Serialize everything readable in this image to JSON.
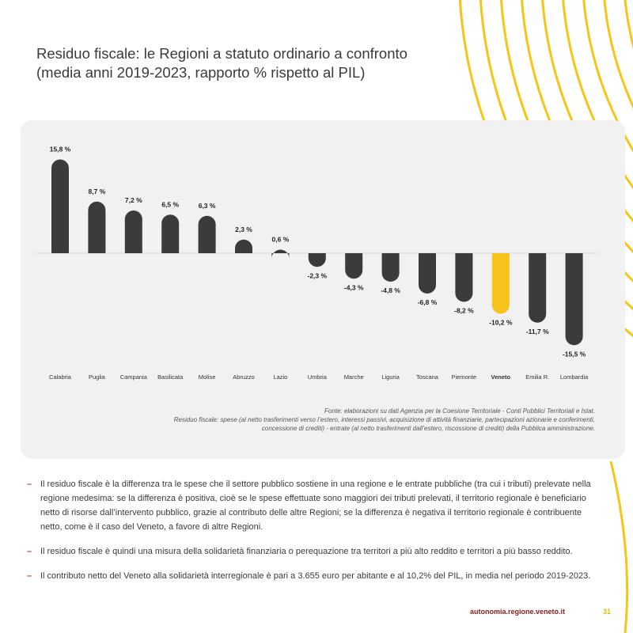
{
  "title_line1": "Residuo fiscale: le Regioni a statuto ordinario a confronto",
  "title_line2": "(media anni 2019-2023, rapporto % rispetto al PIL)",
  "colors": {
    "bar": "#3a3b3d",
    "highlight": "#f7c21b",
    "accent_lines": "#f5c518",
    "bullet_dash": "#e63030",
    "url": "#8a1c1c",
    "page_number": "#f2b705"
  },
  "chart_data": {
    "type": "bar",
    "title": "",
    "xlabel": "",
    "ylabel": "",
    "categories": [
      "Calabria",
      "Puglia",
      "Campania",
      "Basilicata",
      "Molise",
      "Abruzzo",
      "Lazio",
      "Umbria",
      "Marche",
      "Liguria",
      "Toscana",
      "Piemonte",
      "Veneto",
      "Emilia R.",
      "Lombardia"
    ],
    "values": [
      15.8,
      8.7,
      7.2,
      6.5,
      6.3,
      2.3,
      0.6,
      -2.3,
      -4.3,
      -4.8,
      -6.8,
      -8.2,
      -10.2,
      -11.7,
      -15.5
    ],
    "labels": [
      "15,8 %",
      "8,7 %",
      "7,2 %",
      "6,5 %",
      "6,3 %",
      "2,3 %",
      "0,6 %",
      "-2,3 %",
      "-4,3 %",
      "-4,8 %",
      "-6,8 %",
      "-8,2 %",
      "-10,2 %",
      "-11,7 %",
      "-15,5 %"
    ],
    "highlight": "Veneto",
    "ylim": [
      -15.5,
      15.8
    ],
    "grid": false,
    "legend": "none"
  },
  "source_line1": "Fonte: elaborazioni su dati Agenzia per la Coesione Territoriale - Conti Pubblici Territoriali e Istat.",
  "source_line2": "Residuo fiscale: spese (al netto trasferimenti verso l’estero, interessi passivi, acquisizione di attività finanziarie, partecipazioni azionarie e conferimenti,",
  "source_line3": "concessione di crediti) - entrate (al netto trasferimenti dall’estero, riscossione di crediti) della Pubblica amministrazione.",
  "bullet_marker": "–",
  "bullets": [
    "Il residuo fiscale è la differenza tra le spese che il settore pubblico sostiene in una regione e le entrate pubbliche (tra cui i tributi) prelevate nella regione medesima: se la differenza è positiva, cioè se le spese effettuate sono maggiori dei tributi prelevati, il territorio regionale è beneficiario netto di risorse dall’intervento pubblico, grazie al contributo delle altre Regioni; se la differenza è negativa il territorio regionale è contribuente netto, come è il caso del Veneto, a favore di altre Regioni.",
    "Il residuo fiscale è quindi una misura della solidarietà finanziaria o perequazione tra territori a più alto reddito e territori a più basso reddito.",
    "Il contributo netto del Veneto alla solidarietà interregionale è pari a 3.655 euro per abitante e al 10,2% del PIL, in media nel periodo 2019-2023."
  ],
  "footer_url": "autonomia.regione.veneto.it",
  "page_number": "31"
}
